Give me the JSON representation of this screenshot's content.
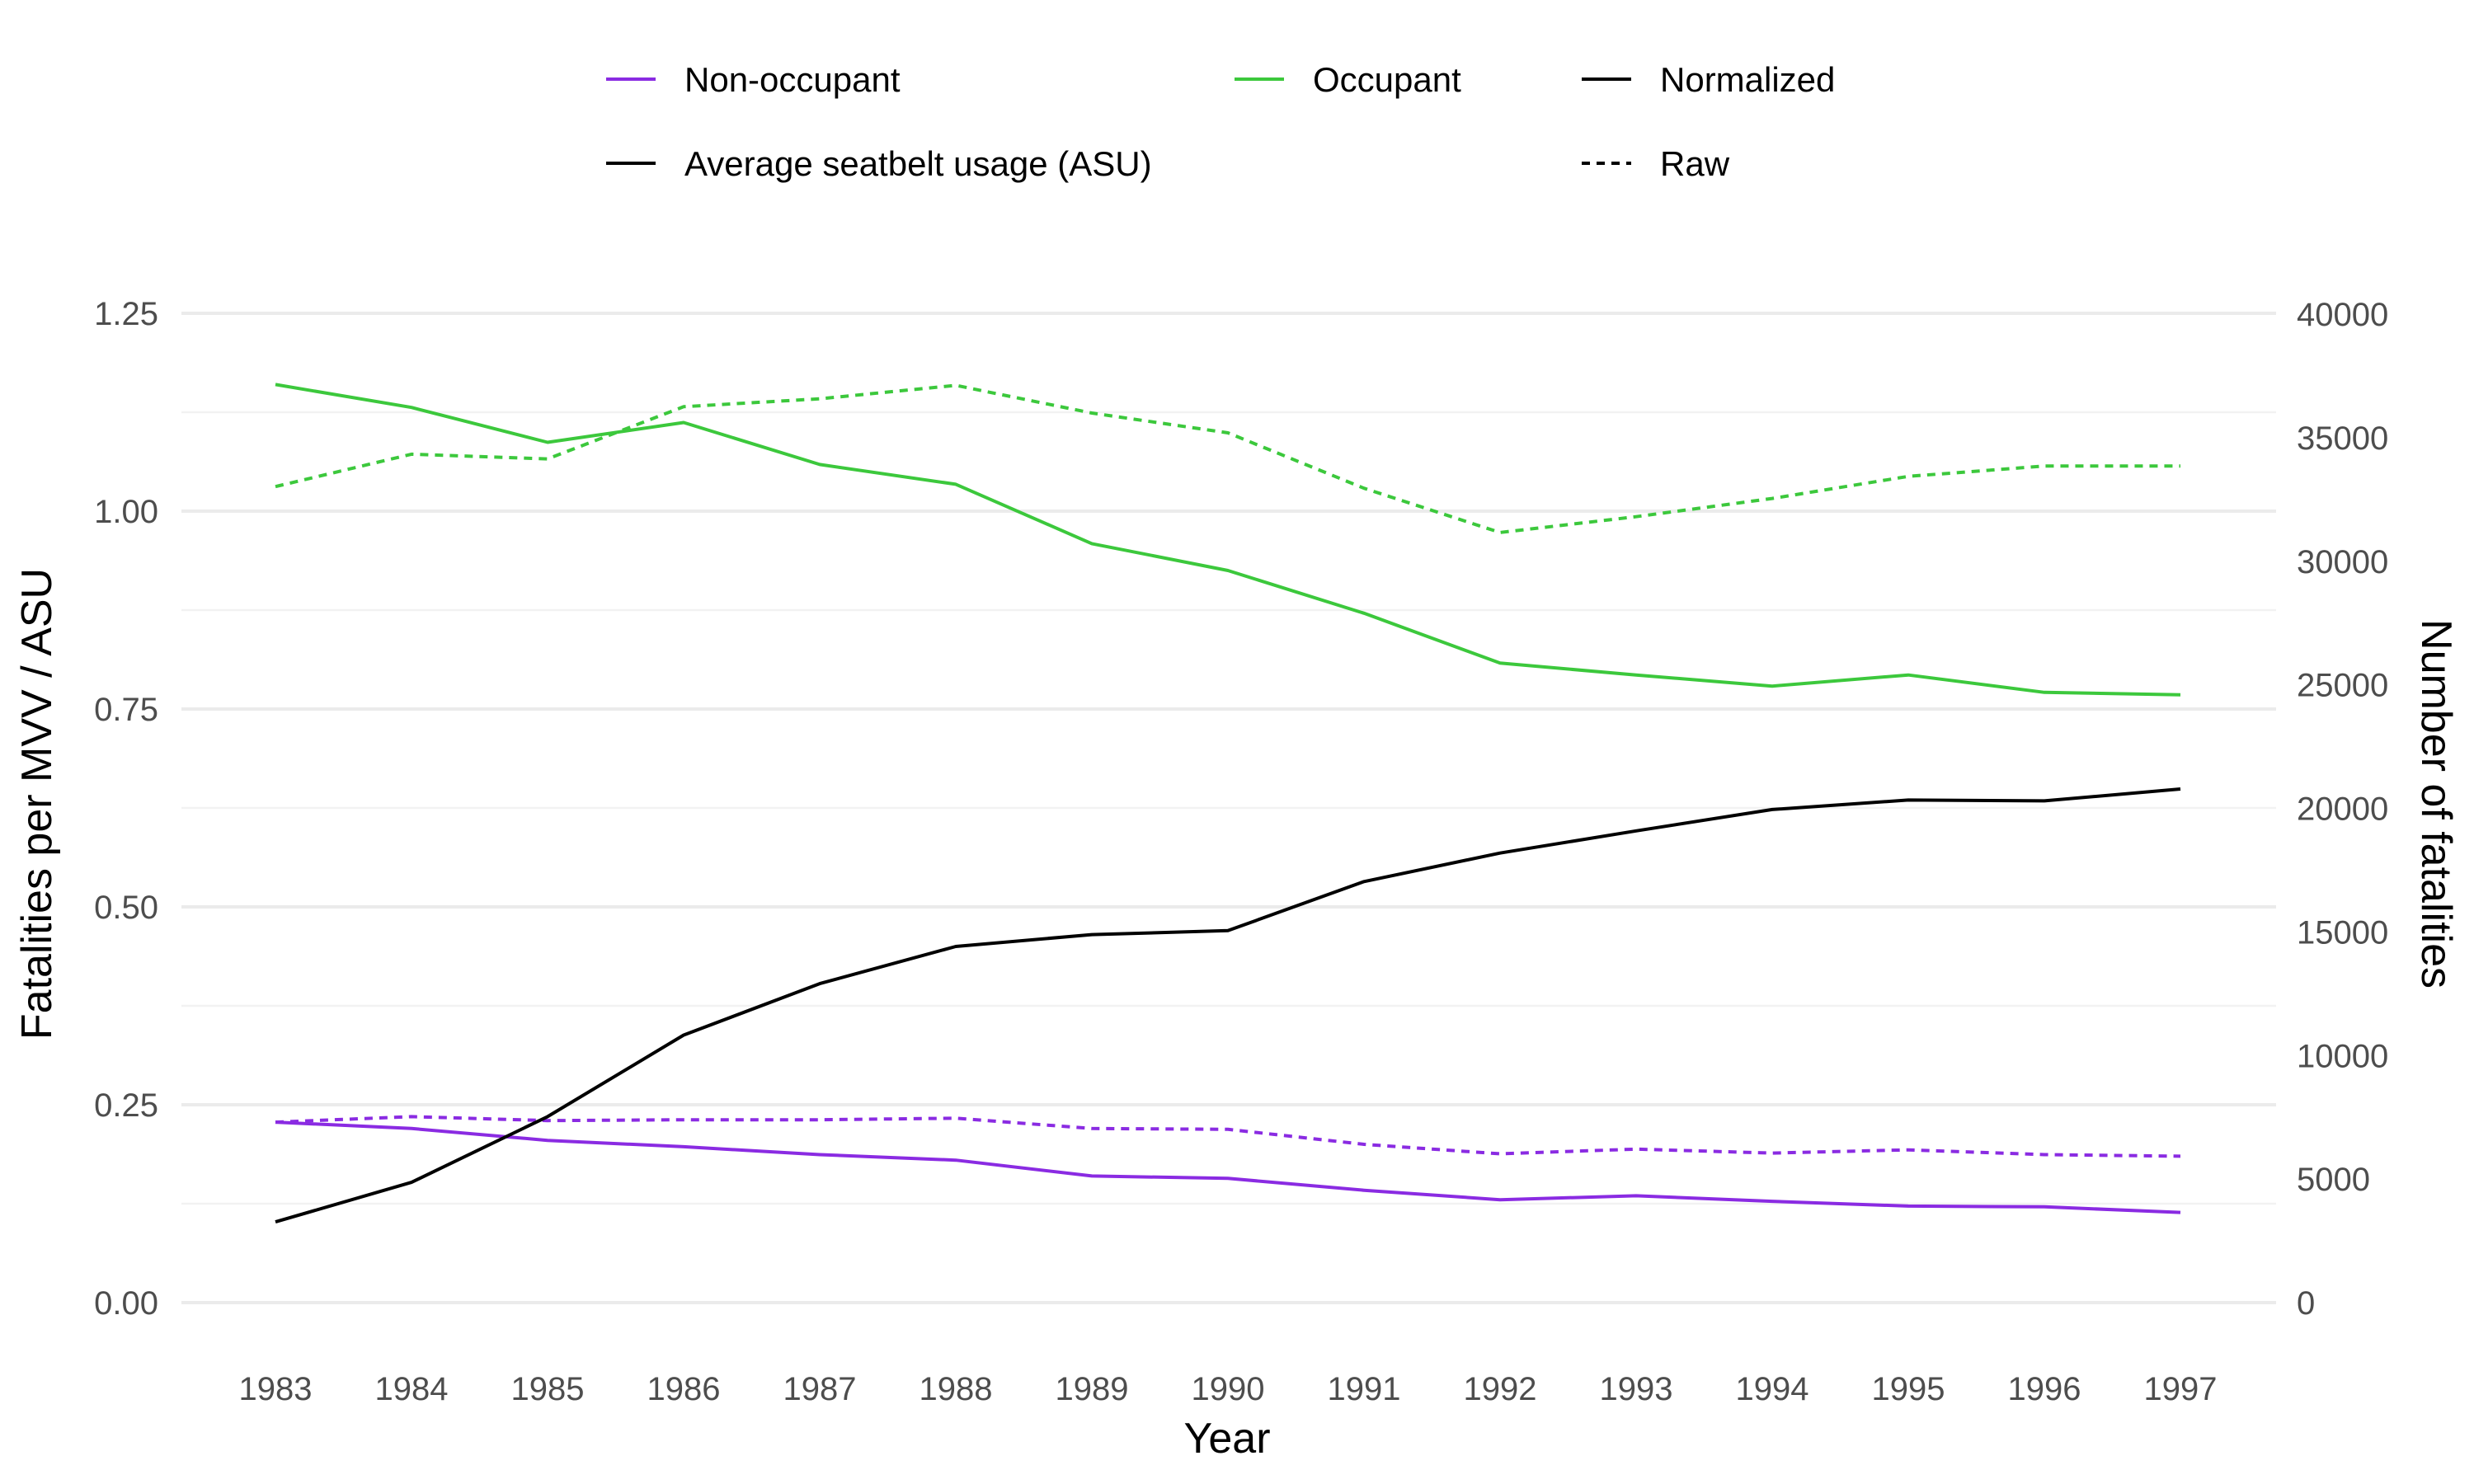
{
  "chart_data": {
    "type": "line",
    "x": [
      1983,
      1984,
      1985,
      1986,
      1987,
      1988,
      1989,
      1990,
      1991,
      1992,
      1993,
      1994,
      1995,
      1996,
      1997
    ],
    "x_tick_labels": [
      "1983",
      "1984",
      "1985",
      "1986",
      "1987",
      "1988",
      "1989",
      "1990",
      "1991",
      "1992",
      "1993",
      "1994",
      "1995",
      "1996",
      "1997"
    ],
    "xlabel": "Year",
    "ylabel_left": "Fatalities per MVV / ASU",
    "ylabel_right": "Number of fatalities",
    "ylim_left": [
      0,
      1.3
    ],
    "ylim_right": [
      0,
      41640
    ],
    "y_ticks_left": [
      0,
      0.25,
      0.5,
      0.75,
      1.0,
      1.25
    ],
    "y_tick_labels_left": [
      "0.00",
      "0.25",
      "0.50",
      "0.75",
      "1.00",
      "1.25"
    ],
    "y_ticks_right": [
      0,
      5000,
      10000,
      15000,
      20000,
      25000,
      30000,
      35000,
      40000
    ],
    "y_tick_labels_right": [
      "0",
      "5000",
      "10000",
      "15000",
      "20000",
      "25000",
      "30000",
      "35000",
      "40000"
    ],
    "grid": true,
    "legend_position": "top",
    "series": [
      {
        "name": "Non-occupant",
        "style": "Normalized",
        "axis": "left",
        "color": "#8a2be2",
        "dash": "solid",
        "values": [
          0.228,
          0.22,
          0.205,
          0.197,
          0.187,
          0.18,
          0.16,
          0.157,
          0.142,
          0.13,
          0.135,
          0.128,
          0.122,
          0.121,
          0.114
        ]
      },
      {
        "name": "Non-occupant",
        "style": "Raw",
        "axis": "left",
        "color": "#8a2be2",
        "dash": "dotted",
        "values": [
          0.228,
          0.235,
          0.23,
          0.231,
          0.231,
          0.233,
          0.22,
          0.219,
          0.2,
          0.188,
          0.194,
          0.189,
          0.193,
          0.187,
          0.185
        ]
      },
      {
        "name": "Occupant",
        "style": "Normalized",
        "axis": "left",
        "color": "#3cc83c",
        "dash": "solid",
        "values": [
          1.16,
          1.131,
          1.087,
          1.112,
          1.059,
          1.034,
          0.959,
          0.925,
          0.871,
          0.808,
          0.793,
          0.779,
          0.793,
          0.771,
          0.768
        ]
      },
      {
        "name": "Occupant",
        "style": "Raw",
        "axis": "left",
        "color": "#3cc83c",
        "dash": "dotted",
        "values": [
          1.031,
          1.072,
          1.066,
          1.132,
          1.142,
          1.159,
          1.124,
          1.099,
          1.029,
          0.973,
          0.993,
          1.016,
          1.044,
          1.057,
          1.057
        ]
      },
      {
        "name": "Average seatbelt usage (ASU)",
        "style": "Normalized",
        "axis": "left",
        "color": "#000000",
        "dash": "solid",
        "values": [
          0.102,
          0.152,
          0.235,
          0.338,
          0.403,
          0.45,
          0.465,
          0.47,
          0.532,
          0.568,
          0.596,
          0.623,
          0.635,
          0.634,
          0.649
        ]
      }
    ],
    "legend": {
      "color_entries": [
        {
          "label": "Non-occupant",
          "color": "#8a2be2"
        },
        {
          "label": "Occupant",
          "color": "#3cc83c"
        },
        {
          "label": "Average seatbelt usage (ASU)",
          "color": "#000000"
        }
      ],
      "linetype_entries": [
        {
          "label": "Normalized",
          "dash": "solid"
        },
        {
          "label": "Raw",
          "dash": "dotted"
        }
      ]
    }
  }
}
